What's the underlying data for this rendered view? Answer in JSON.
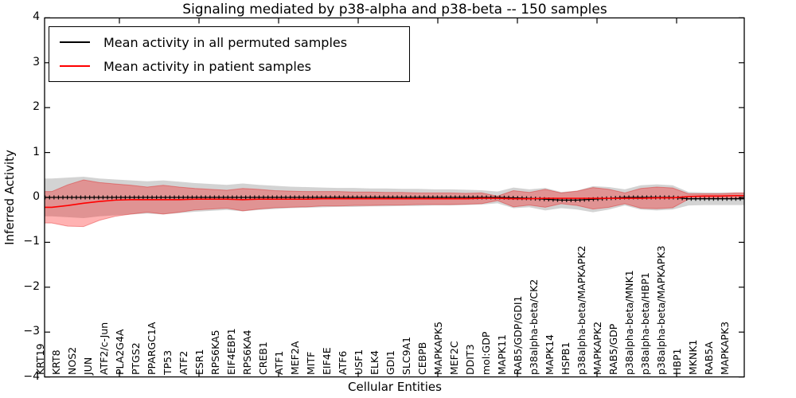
{
  "title": "Signaling mediated by p38-alpha and p38-beta -- 150 samples",
  "axes": {
    "ylabel": "Inferred Activity",
    "xlabel": "Cellular Entities",
    "ytick_labels": [
      "4",
      "3",
      "2",
      "1",
      "0",
      "−1",
      "−2",
      "−3",
      "−4"
    ],
    "ytick_values": [
      4,
      3,
      2,
      1,
      0,
      -1,
      -2,
      -3,
      -4
    ]
  },
  "legend": {
    "items": [
      {
        "label": "Mean activity in all permuted samples",
        "color": "#000000"
      },
      {
        "label": "Mean activity in patient samples",
        "color": "#ff0000"
      }
    ]
  },
  "colors": {
    "background": "#ffffff",
    "axis": "#000000",
    "permuted_line": "#000000",
    "patient_line": "#ff0000",
    "permuted_band": "rgba(128,128,128,0.35)",
    "patient_band": "rgba(255,0,0,0.30)",
    "patient_band_edge": "rgba(220,0,0,0.35)"
  },
  "chart_data": {
    "type": "line",
    "title": "Signaling mediated by p38-alpha and p38-beta -- 150 samples",
    "xlabel": "Cellular Entities",
    "ylabel": "Inferred Activity",
    "ylim": [
      -4,
      4
    ],
    "grid": false,
    "legend_position": "upper left",
    "categories": [
      "KRT19",
      "KRT8",
      "NOS2",
      "JUN",
      "ATF2/c-Jun",
      "PLA2G4A",
      "PTGS2",
      "PPARGC1A",
      "TP53",
      "ATF2",
      "ESR1",
      "RPS6KA5",
      "EIF4EBP1",
      "RPS6KA4",
      "CREB1",
      "ATF1",
      "MEF2A",
      "MITF",
      "EIF4E",
      "ATF6",
      "USF1",
      "ELK4",
      "GDI1",
      "SLC9A1",
      "CEBPB",
      "MAPKAPK5",
      "MEF2C",
      "DDIT3",
      "mol:GDP",
      "MAPK11",
      "RAB5/GDP/GDI1",
      "p38alpha-beta/CK2",
      "MAPK14",
      "HSPB1",
      "p38alpha-beta/MAPKAPK2",
      "MAPKAPK2",
      "RAB5/GDP",
      "p38alpha-beta/MNK1",
      "p38alpha-beta/HBP1",
      "p38alpha-beta/MAPKAPK3",
      "HBP1",
      "MKNK1",
      "RAB5A",
      "MAPKAPK3"
    ],
    "series": [
      {
        "name": "Mean activity in all permuted samples",
        "color": "#000000",
        "values": [
          0,
          0,
          0,
          0,
          0,
          0,
          0,
          0,
          0,
          0,
          0,
          0,
          0,
          0,
          0,
          0,
          0,
          0,
          0,
          0,
          0,
          0,
          0,
          0,
          0,
          0,
          0,
          0,
          0,
          -0.01,
          -0.02,
          -0.04,
          -0.06,
          -0.06,
          -0.04,
          -0.02,
          0,
          0,
          0,
          0,
          -0.03,
          -0.03,
          -0.03,
          -0.03
        ]
      },
      {
        "name": "Mean activity in patient samples",
        "color": "#ff0000",
        "values": [
          -0.22,
          -0.18,
          -0.13,
          -0.09,
          -0.06,
          -0.05,
          -0.05,
          -0.05,
          -0.05,
          -0.04,
          -0.04,
          -0.04,
          -0.05,
          -0.04,
          -0.04,
          -0.04,
          -0.04,
          -0.03,
          -0.03,
          -0.03,
          -0.03,
          -0.03,
          -0.03,
          -0.03,
          -0.03,
          -0.03,
          -0.03,
          -0.02,
          -0.02,
          -0.03,
          -0.03,
          -0.02,
          -0.02,
          -0.02,
          -0.02,
          -0.02,
          -0.02,
          -0.02,
          -0.01,
          -0.01,
          0.02,
          0.03,
          0.03,
          0.04
        ]
      }
    ],
    "bands": [
      {
        "name": "permuted-samples-spread",
        "center_series": 0,
        "half_widths": [
          0.42,
          0.44,
          0.46,
          0.42,
          0.4,
          0.38,
          0.36,
          0.38,
          0.35,
          0.32,
          0.3,
          0.28,
          0.31,
          0.28,
          0.26,
          0.24,
          0.23,
          0.22,
          0.21,
          0.21,
          0.2,
          0.2,
          0.19,
          0.19,
          0.18,
          0.18,
          0.17,
          0.16,
          0.13,
          0.23,
          0.2,
          0.25,
          0.18,
          0.21,
          0.29,
          0.25,
          0.18,
          0.27,
          0.29,
          0.27,
          0.15,
          0.14,
          0.14,
          0.14
        ]
      },
      {
        "name": "patient-samples-spread",
        "center_series": 1,
        "half_widths": [
          0.35,
          0.46,
          0.52,
          0.42,
          0.36,
          0.32,
          0.28,
          0.32,
          0.28,
          0.24,
          0.22,
          0.2,
          0.25,
          0.22,
          0.19,
          0.18,
          0.17,
          0.16,
          0.16,
          0.15,
          0.15,
          0.14,
          0.14,
          0.13,
          0.13,
          0.13,
          0.12,
          0.12,
          0.05,
          0.18,
          0.14,
          0.2,
          0.12,
          0.16,
          0.24,
          0.2,
          0.12,
          0.22,
          0.24,
          0.22,
          0.06,
          0.05,
          0.05,
          0.06
        ]
      }
    ]
  }
}
